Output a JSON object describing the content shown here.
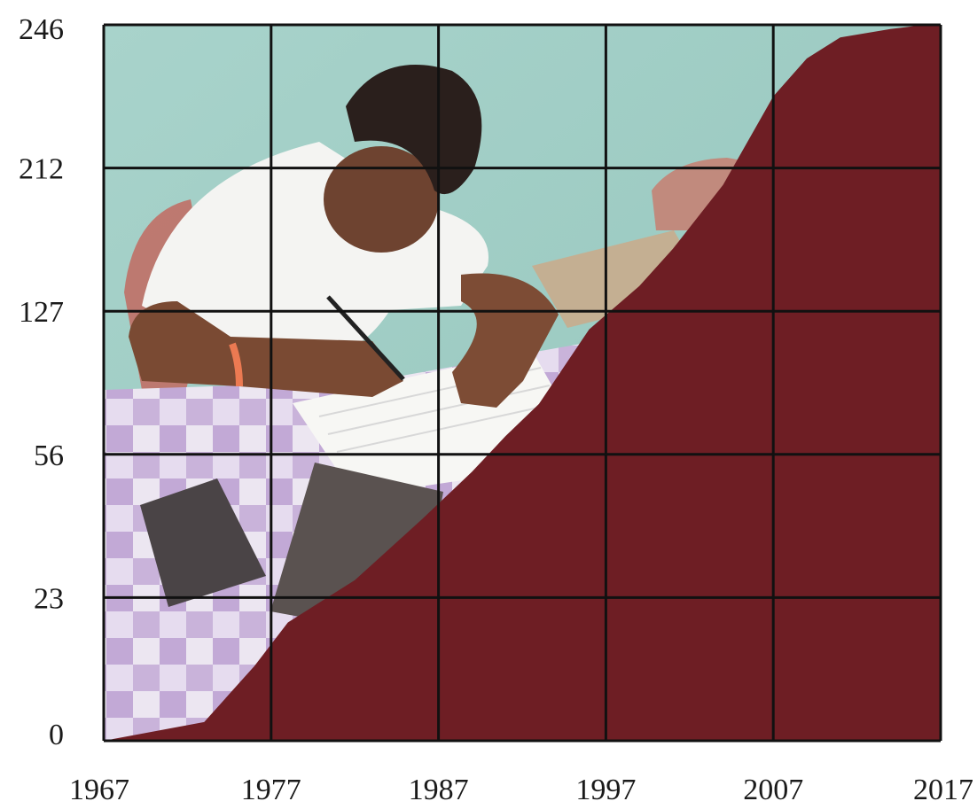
{
  "chart_data": {
    "type": "area",
    "title": "",
    "xlabel": "",
    "ylabel": "",
    "x_ticks": [
      "1967",
      "1977",
      "1987",
      "1997",
      "2007",
      "2017"
    ],
    "y_ticks": [
      "0",
      "23",
      "56",
      "127",
      "212",
      "246"
    ],
    "y_scale": "categorical-ticks (non-linear, evenly spaced)",
    "xlim": [
      1967,
      2017
    ],
    "grid": true,
    "legend": "none",
    "background": "photograph of a boy writing at a table (faded)",
    "fill_color": "#6e1e24",
    "series": [
      {
        "x": [
          1967,
          1973,
          1976,
          1978,
          1982,
          1986,
          1989,
          1991,
          1993,
          1996,
          1999,
          2001,
          2004,
          2007,
          2009,
          2011,
          2014,
          2016,
          2017
        ],
        "values": [
          0,
          3,
          12,
          19,
          27,
          41,
          52,
          65,
          81,
          118,
          142,
          164,
          202,
          229,
          238,
          243,
          245,
          246,
          246
        ]
      }
    ]
  },
  "colors": {
    "area_fill": "#6e1e24",
    "grid_line": "#111111",
    "wall": "#9ecbc2",
    "tablecloth_light": "#d9cde6",
    "tablecloth_dark": "#b49ac9"
  }
}
